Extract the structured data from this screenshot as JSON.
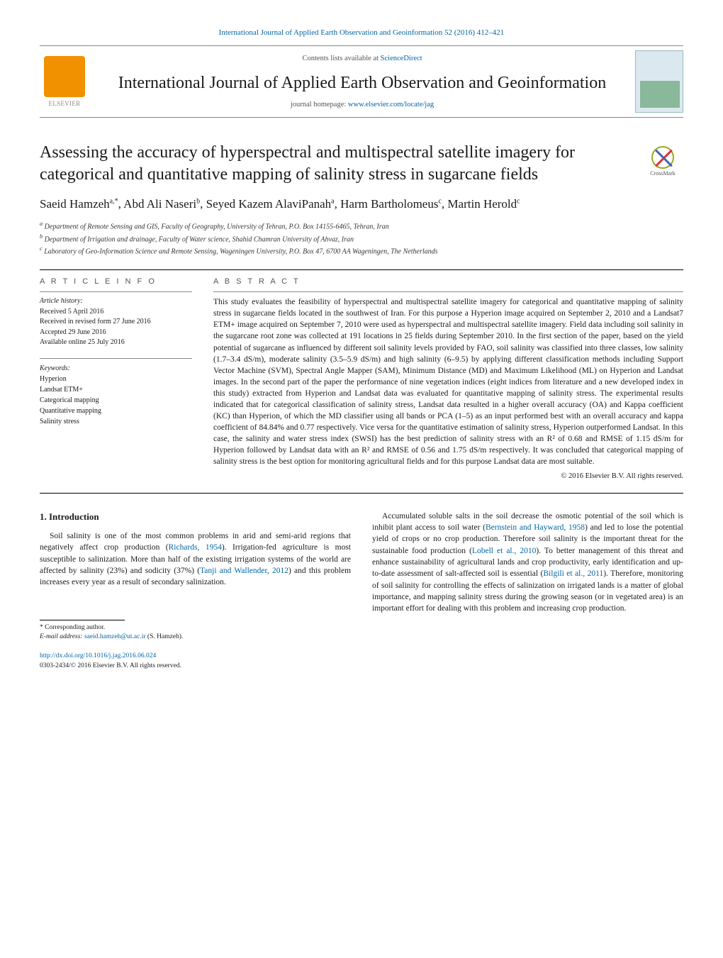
{
  "journal_citation": "International Journal of Applied Earth Observation and Geoinformation 52 (2016) 412–421",
  "contents_line_prefix": "Contents lists available at ",
  "contents_line_link": "ScienceDirect",
  "journal_name": "International Journal of Applied Earth Observation and Geoinformation",
  "homepage_prefix": "journal homepage: ",
  "homepage_url": "www.elsevier.com/locate/jag",
  "elsevier_label": "ELSEVIER",
  "crossmark_label": "CrossMark",
  "article": {
    "title": "Assessing the accuracy of hyperspectral and multispectral satellite imagery for categorical and quantitative mapping of salinity stress in sugarcane fields",
    "authors_html": "Saeid Hamzeh<sup>a,*</sup>, Abd Ali Naseri<sup>b</sup>, Seyed Kazem AlaviPanah<sup>a</sup>, Harm Bartholomeus<sup>c</sup>, Martin Herold<sup>c</sup>",
    "affiliations": [
      "a Department of Remote Sensing and GIS, Faculty of Geography, University of Tehran, P.O. Box 14155-6465, Tehran, Iran",
      "b Department of Irrigation and drainage, Faculty of Water science, Shahid Chamran University of Ahvaz, Iran",
      "c Laboratory of Geo-Information Science and Remote Sensing, Wageningen University, P.O. Box 47, 6700 AA Wageningen, The Netherlands"
    ]
  },
  "info_heading": "A R T I C L E   I N F O",
  "abstract_heading": "A B S T R A C T",
  "history": {
    "label": "Article history:",
    "received": "Received 5 April 2016",
    "revised": "Received in revised form 27 June 2016",
    "accepted": "Accepted 29 June 2016",
    "online": "Available online 25 July 2016"
  },
  "keywords_label": "Keywords:",
  "keywords": [
    "Hyperion",
    "Landsat ETM+",
    "Categorical mapping",
    "Quantitative mapping",
    "Salinity stress"
  ],
  "abstract": "This study evaluates the feasibility of hyperspectral and multispectral satellite imagery for categorical and quantitative mapping of salinity stress in sugarcane fields located in the southwest of Iran. For this purpose a Hyperion image acquired on September 2, 2010 and a Landsat7 ETM+ image acquired on September 7, 2010 were used as hyperspectral and multispectral satellite imagery. Field data including soil salinity in the sugarcane root zone was collected at 191 locations in 25 fields during September 2010. In the first section of the paper, based on the yield potential of sugarcane as influenced by different soil salinity levels provided by FAO, soil salinity was classified into three classes, low salinity (1.7–3.4 dS/m), moderate salinity (3.5–5.9 dS/m) and high salinity (6–9.5) by applying different classification methods including Support Vector Machine (SVM), Spectral Angle Mapper (SAM), Minimum Distance (MD) and Maximum Likelihood (ML) on Hyperion and Landsat images. In the second part of the paper the performance of nine vegetation indices (eight indices from literature and a new developed index in this study) extracted from Hyperion and Landsat data was evaluated for quantitative mapping of salinity stress. The experimental results indicated that for categorical classification of salinity stress, Landsat data resulted in a higher overall accuracy (OA) and Kappa coefficient (KC) than Hyperion, of which the MD classifier using all bands or PCA (1–5) as an input performed best with an overall accuracy and kappa coefficient of 84.84% and 0.77 respectively. Vice versa for the quantitative estimation of salinity stress, Hyperion outperformed Landsat. In this case, the salinity and water stress index (SWSI) has the best prediction of salinity stress with an R² of 0.68 and RMSE of 1.15 dS/m for Hyperion followed by Landsat data with an R² and RMSE of 0.56 and 1.75 dS/m respectively. It was concluded that categorical mapping of salinity stress is the best option for monitoring agricultural fields and for this purpose Landsat data are most suitable.",
  "copyright": "© 2016 Elsevier B.V. All rights reserved.",
  "intro_heading": "1. Introduction",
  "intro_p1_a": "Soil salinity is one of the most common problems in arid and semi-arid regions that negatively affect crop production (",
  "intro_p1_cite1": "Richards, 1954",
  "intro_p1_b": "). Irrigation-fed agriculture is most susceptible to salinization. More than half of the existing irrigation systems of the world are affected by salinity (23%) and sodicity (37%) (",
  "intro_p1_cite2": "Tanji and Wallender, 2012",
  "intro_p1_c": ") and this problem increases every year as a result of secondary salinization.",
  "intro_p2_a": "Accumulated soluble salts in the soil decrease the osmotic potential of the soil which is inhibit plant access to soil water (",
  "intro_p2_cite1": "Bernstein and Hayward, 1958",
  "intro_p2_b": ") and led to lose the potential yield of crops or no crop production. Therefore soil salinity is the important threat for the sustainable food production (",
  "intro_p2_cite2": "Lobell et al., 2010",
  "intro_p2_c": "). To better management of this threat and enhance sustainability of agricultural lands and crop productivity, early identification and up-to-date assessment of salt-affected soil is essential (",
  "intro_p2_cite3": "Bilgili et al., 2011",
  "intro_p2_d": "). Therefore, monitoring of soil salinity for controlling the effects of salinization on irrigated lands is a matter of global importance, and mapping salinity stress during the growing season (or in vegetated area) is an important effort for dealing with this problem and increasing crop production.",
  "footnote": {
    "corr": "* Corresponding author.",
    "email_label": "E-mail address: ",
    "email": "saeid.hamzeh@ut.ac.ir",
    "email_person": " (S. Hamzeh)."
  },
  "doi_url": "http://dx.doi.org/10.1016/j.jag.2016.06.024",
  "issn_line": "0303-2434/© 2016 Elsevier B.V. All rights reserved.",
  "colors": {
    "link": "#0065a4",
    "elsevier_orange": "#f29100",
    "text": "#1a1a1a",
    "muted": "#555555"
  }
}
